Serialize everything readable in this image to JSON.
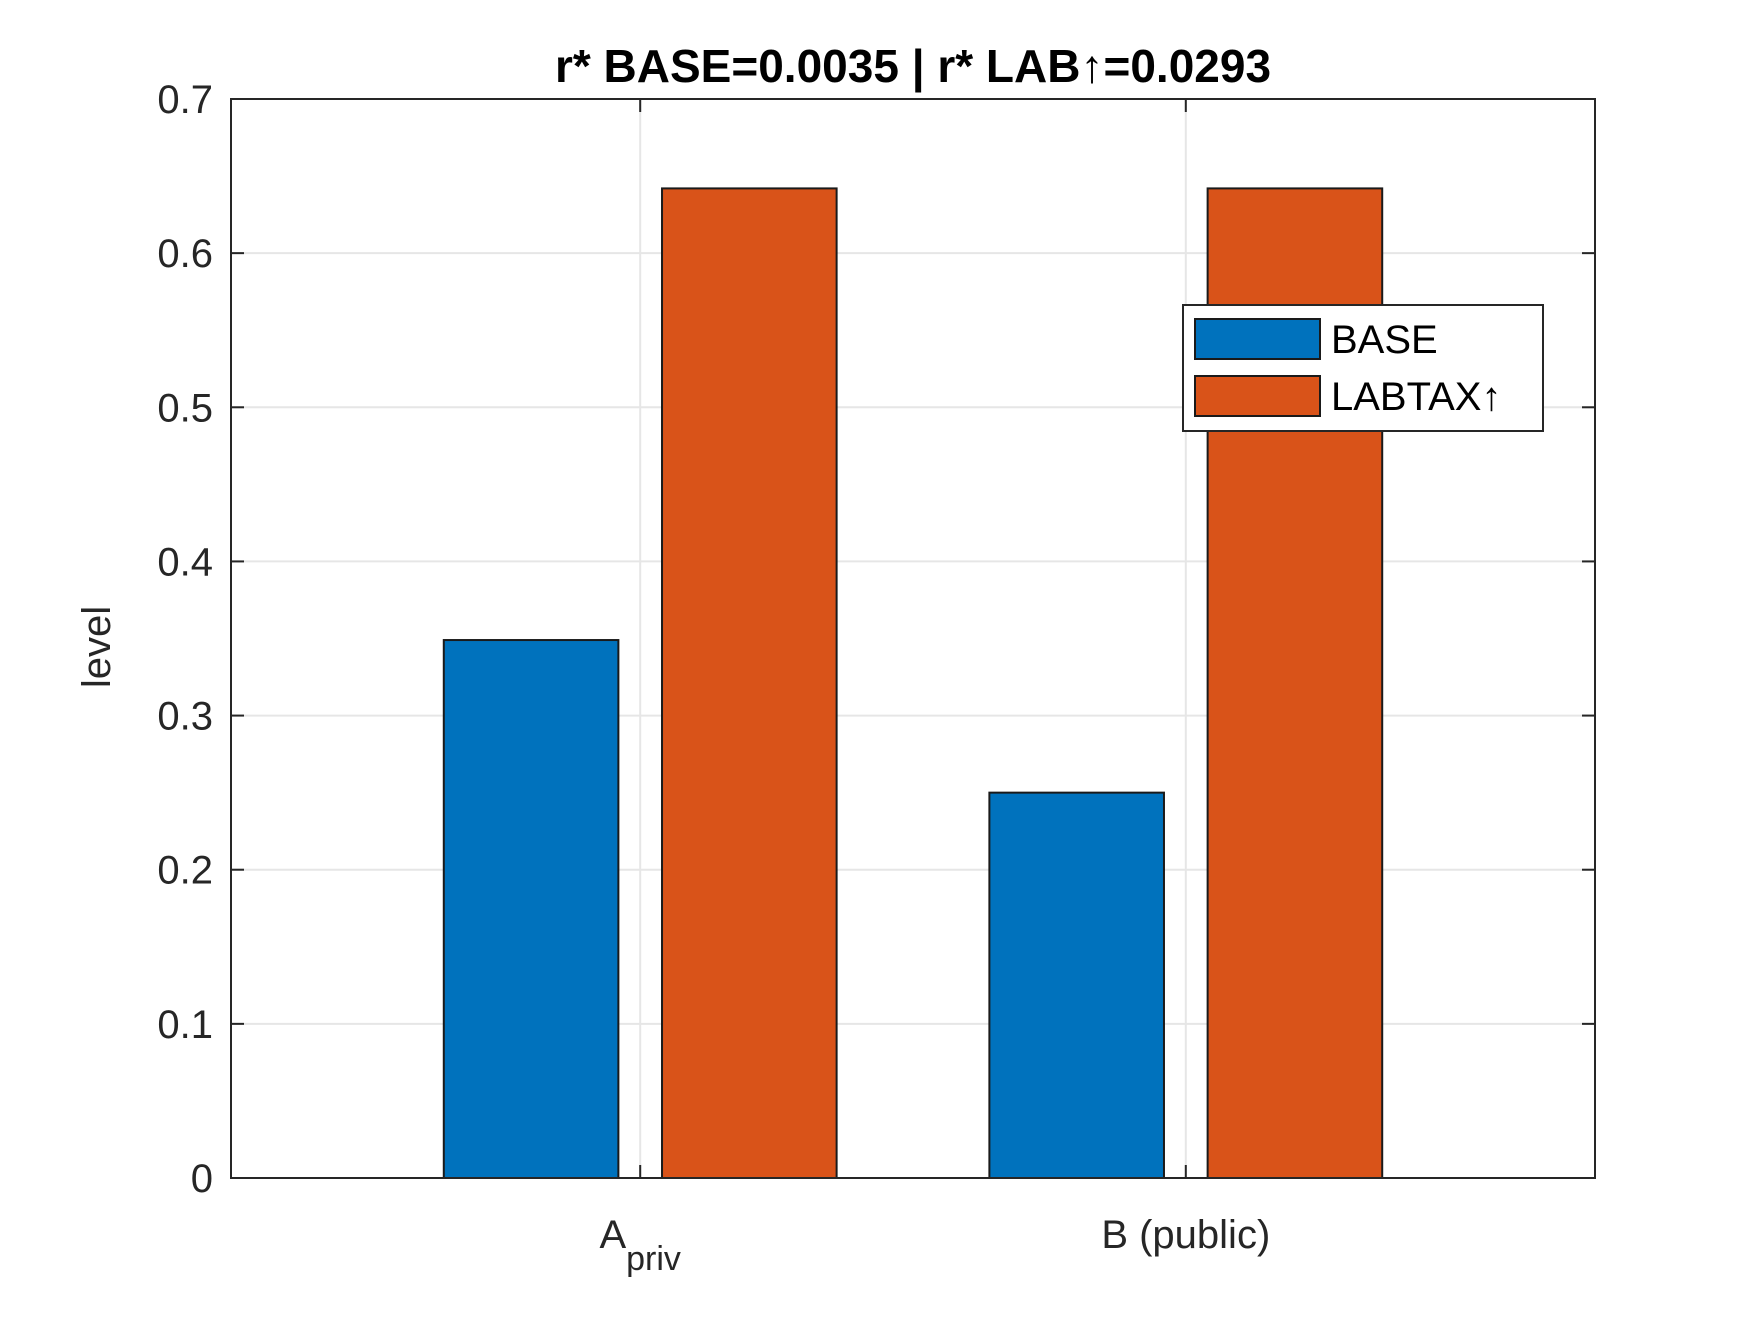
{
  "chart_data": {
    "type": "bar",
    "title": "r* BASE=0.0035 | r* LAB↑=0.0293",
    "xlabel": "",
    "ylabel": "level",
    "categories": [
      {
        "main": "A",
        "sub": "priv"
      },
      {
        "main": "B (public)",
        "sub": ""
      }
    ],
    "series": [
      {
        "name": "BASE",
        "color": "#0072BD",
        "values": [
          0.349,
          0.25
        ]
      },
      {
        "name": "LABTAX↑",
        "color": "#D95319",
        "values": [
          0.642,
          0.642
        ]
      }
    ],
    "ylim": [
      0,
      0.7
    ],
    "yticks": [
      "0",
      "0.1",
      "0.2",
      "0.3",
      "0.4",
      "0.5",
      "0.6",
      "0.7"
    ],
    "grid": true,
    "legend_position": "top-right"
  }
}
